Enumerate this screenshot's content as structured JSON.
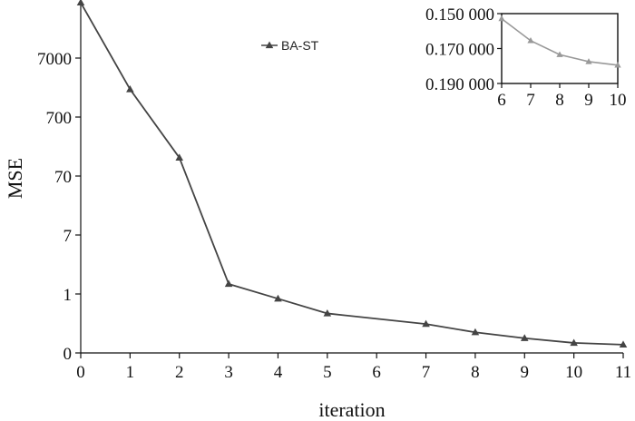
{
  "chart_data": [
    {
      "type": "line",
      "xlabel": "iteration",
      "ylabel": "MSE",
      "x": [
        0,
        1,
        2,
        3,
        4,
        5,
        6,
        7,
        8,
        9,
        10,
        11
      ],
      "xticks": [
        "0",
        "1",
        "2",
        "3",
        "4",
        "5",
        "6",
        "7",
        "8",
        "9",
        "10",
        "11"
      ],
      "yticks": [
        "0",
        "1",
        "7",
        "70",
        "700",
        "7000"
      ],
      "legend_position": "top-center",
      "grid": false,
      "series": [
        {
          "name": "BA-ST",
          "color": "#444444",
          "marker": "triangle",
          "y_tick_positions": [
            5.94,
            4.47,
            3.31,
            1.17,
            0.92,
            0.67,
            null,
            0.49,
            0.35,
            0.25,
            0.17,
            0.14
          ]
        }
      ]
    },
    {
      "type": "line",
      "note_axis": "inset",
      "x": [
        6,
        7,
        8,
        9,
        10
      ],
      "xticks": [
        "6",
        "7",
        "8",
        "9",
        "10"
      ],
      "yticks": [
        "0.150 000",
        "0.170 000",
        "0.190 000"
      ],
      "ylim": [
        0.19,
        0.15
      ],
      "y_inverted": true,
      "series": [
        {
          "color": "#999999",
          "marker": "triangle",
          "values": [
            0.1529,
            0.1655,
            0.1735,
            0.1775,
            0.1795
          ]
        }
      ]
    }
  ]
}
